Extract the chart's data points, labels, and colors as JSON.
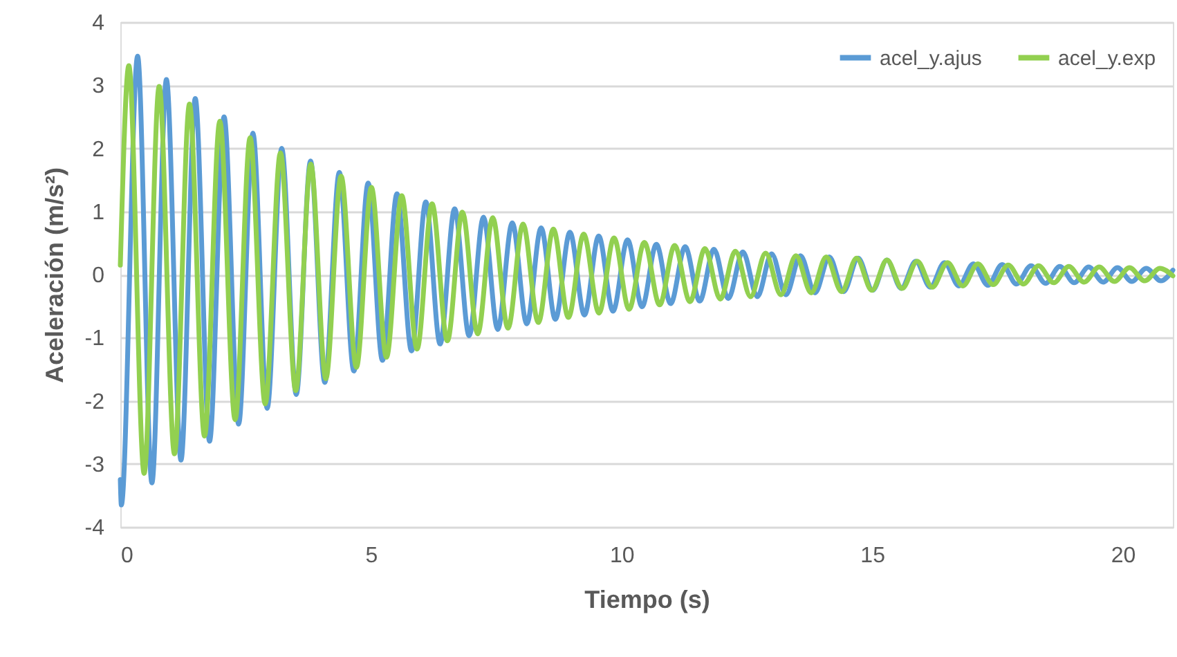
{
  "chart_data": {
    "type": "line",
    "xlabel": "Tiempo (s)",
    "ylabel": "Aceleración (m/s²)",
    "xlim": [
      0,
      21
    ],
    "xticks": [
      0,
      5,
      10,
      15,
      20
    ],
    "ylim": [
      -4,
      4
    ],
    "yticks": [
      -4,
      -3,
      -2,
      -1,
      0,
      1,
      2,
      3,
      4
    ],
    "grid": "y",
    "legend": "top right",
    "marker": "none",
    "line_style": "solid",
    "series": [
      {
        "name": "acel_y.ajus",
        "color": "#5b9bd5",
        "x": [
          0,
          0.02,
          0.345,
          0.63,
          0.92,
          1.21,
          1.495,
          1.78,
          2.07,
          2.36,
          2.645,
          2.93,
          3.22,
          3.51,
          3.795,
          4.08,
          4.37,
          4.66,
          4.945,
          5.23,
          5.52,
          5.81,
          6.095,
          6.38,
          6.67,
          6.96,
          7.245,
          7.53,
          7.82,
          8.11,
          8.395,
          8.68,
          8.97,
          9.26,
          9.545,
          9.83,
          10.12,
          10.41,
          10.695,
          10.98,
          11.27,
          11.56,
          11.845,
          12.13,
          12.42,
          12.71,
          12.995,
          13.28,
          13.57,
          13.86,
          14.145,
          14.43,
          14.72,
          15.01,
          15.295,
          15.58,
          15.87,
          16.16,
          16.445,
          16.73,
          17.02,
          17.31,
          17.595,
          17.88,
          18.17,
          18.46,
          18.745,
          19.03,
          19.32,
          19.61,
          19.895,
          20.18,
          20.47,
          20.76,
          21
        ],
        "values": [
          -3.25,
          -3.65,
          3.46,
          -3.3,
          3.09,
          -2.94,
          2.79,
          -2.64,
          2.5,
          -2.37,
          2.24,
          -2.12,
          2.0,
          -1.9,
          1.8,
          -1.71,
          1.62,
          -1.53,
          1.45,
          -1.36,
          1.28,
          -1.21,
          1.15,
          -1.1,
          1.04,
          -0.97,
          0.91,
          -0.87,
          0.82,
          -0.78,
          0.74,
          -0.71,
          0.67,
          -0.64,
          0.61,
          -0.58,
          0.55,
          -0.51,
          0.48,
          -0.46,
          0.44,
          -0.42,
          0.4,
          -0.38,
          0.36,
          -0.35,
          0.33,
          -0.32,
          0.3,
          -0.29,
          0.28,
          -0.27,
          0.26,
          -0.25,
          0.23,
          -0.22,
          0.21,
          -0.2,
          0.19,
          -0.18,
          0.17,
          -0.17,
          0.16,
          -0.15,
          0.14,
          -0.14,
          0.13,
          -0.13,
          0.12,
          -0.12,
          0.11,
          -0.11,
          0.1,
          -0.1,
          0.07
        ]
      },
      {
        "name": "acel_y.exp",
        "color": "#92d050",
        "x": [
          0,
          0.17,
          0.475,
          0.775,
          1.08,
          1.38,
          1.68,
          1.985,
          2.29,
          2.59,
          2.89,
          3.195,
          3.5,
          3.8,
          4.1,
          4.405,
          4.71,
          5.01,
          5.31,
          5.615,
          5.92,
          6.22,
          6.525,
          6.825,
          7.13,
          7.43,
          7.735,
          8.035,
          8.34,
          8.64,
          8.94,
          9.245,
          9.55,
          9.85,
          10.15,
          10.455,
          10.76,
          11.06,
          11.365,
          11.665,
          11.97,
          12.27,
          12.575,
          12.875,
          13.18,
          13.48,
          13.785,
          14.085,
          14.39,
          14.69,
          14.995,
          15.295,
          15.6,
          15.9,
          16.2,
          16.505,
          16.81,
          17.11,
          17.415,
          17.715,
          18.02,
          18.32,
          18.625,
          18.925,
          19.23,
          19.53,
          19.835,
          20.135,
          20.44,
          20.74,
          21
        ],
        "values": [
          0.15,
          3.31,
          -3.15,
          2.98,
          -2.84,
          2.7,
          -2.56,
          2.43,
          -2.3,
          2.17,
          -2.05,
          1.93,
          -1.84,
          1.75,
          -1.65,
          1.56,
          -1.47,
          1.38,
          -1.31,
          1.25,
          -1.18,
          1.12,
          -1.05,
          0.99,
          -0.94,
          0.9,
          -0.85,
          0.8,
          -0.76,
          0.72,
          -0.68,
          0.64,
          -0.61,
          0.58,
          -0.55,
          0.51,
          -0.48,
          0.46,
          -0.43,
          0.41,
          -0.39,
          0.37,
          -0.35,
          0.34,
          -0.32,
          0.3,
          -0.29,
          0.28,
          -0.27,
          0.26,
          -0.25,
          0.23,
          -0.22,
          0.21,
          -0.2,
          0.19,
          -0.18,
          0.17,
          -0.16,
          0.15,
          -0.15,
          0.14,
          -0.13,
          0.13,
          -0.12,
          0.12,
          -0.11,
          0.11,
          -0.1,
          0.1,
          -0.02
        ]
      }
    ]
  }
}
